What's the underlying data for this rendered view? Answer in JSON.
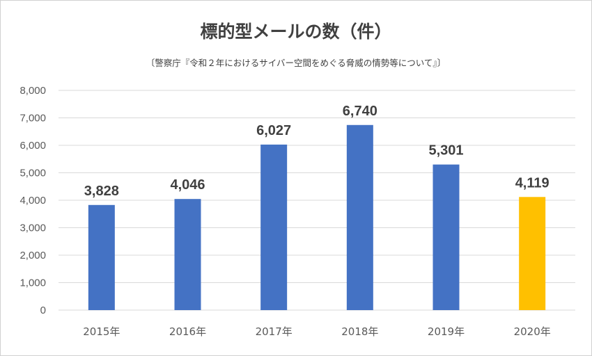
{
  "chart_data": {
    "type": "bar",
    "title": "標的型メールの数（件）",
    "subtitle": "〔警察庁『令和２年におけるサイバー空間をめぐる脅威の情勢等について』〕",
    "categories": [
      "2015年",
      "2016年",
      "2017年",
      "2018年",
      "2019年",
      "2020年"
    ],
    "values": [
      3828,
      4046,
      6027,
      6740,
      5301,
      4119
    ],
    "data_labels": [
      "3,828",
      "4,046",
      "6,027",
      "6,740",
      "5,301",
      "4,119"
    ],
    "yticks": [
      "0",
      "1,000",
      "2,000",
      "3,000",
      "4,000",
      "5,000",
      "6,000",
      "7,000",
      "8,000"
    ],
    "ylim": [
      0,
      8000
    ],
    "xlabel": "",
    "ylabel": "",
    "grid": true,
    "colors": {
      "default": "#4472C4",
      "highlight": "#FFC000",
      "gridline": "#D9D9D9"
    },
    "highlight_index": 5
  }
}
